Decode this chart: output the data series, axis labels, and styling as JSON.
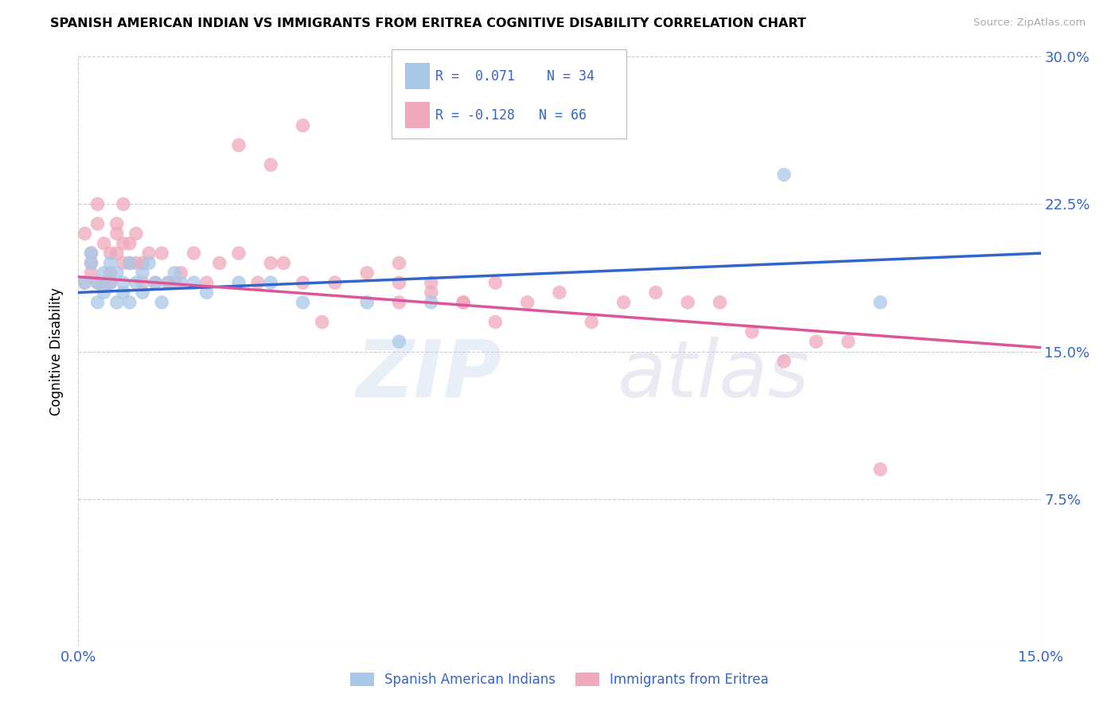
{
  "title": "SPANISH AMERICAN INDIAN VS IMMIGRANTS FROM ERITREA COGNITIVE DISABILITY CORRELATION CHART",
  "source": "Source: ZipAtlas.com",
  "ylabel": "Cognitive Disability",
  "x_min": 0.0,
  "x_max": 0.15,
  "y_min": 0.0,
  "y_max": 0.3,
  "y_ticks": [
    0.0,
    0.075,
    0.15,
    0.225,
    0.3
  ],
  "y_tick_labels": [
    "",
    "7.5%",
    "15.0%",
    "22.5%",
    "30.0%"
  ],
  "x_ticks_show": [
    0.0,
    0.15
  ],
  "x_tick_labels_show": [
    "0.0%",
    "15.0%"
  ],
  "legend_line1": "R =  0.071    N = 34",
  "legend_line2": "R = -0.128   N = 66",
  "legend_label_blue": "Spanish American Indians",
  "legend_label_pink": "Immigrants from Eritrea",
  "blue_color": "#a8c8e8",
  "pink_color": "#f0a8bc",
  "blue_line_color": "#3366cc",
  "pink_line_color": "#dd5599",
  "blue_x": [
    0.001,
    0.002,
    0.002,
    0.003,
    0.003,
    0.004,
    0.004,
    0.005,
    0.005,
    0.006,
    0.006,
    0.007,
    0.007,
    0.008,
    0.008,
    0.009,
    0.01,
    0.01,
    0.011,
    0.012,
    0.013,
    0.014,
    0.015,
    0.016,
    0.018,
    0.02,
    0.025,
    0.03,
    0.035,
    0.05,
    0.055,
    0.11,
    0.125,
    0.045
  ],
  "blue_y": [
    0.185,
    0.2,
    0.195,
    0.185,
    0.175,
    0.19,
    0.18,
    0.195,
    0.185,
    0.175,
    0.19,
    0.185,
    0.18,
    0.195,
    0.175,
    0.185,
    0.19,
    0.18,
    0.195,
    0.185,
    0.175,
    0.185,
    0.19,
    0.185,
    0.185,
    0.18,
    0.185,
    0.185,
    0.175,
    0.155,
    0.175,
    0.24,
    0.175,
    0.175
  ],
  "pink_x": [
    0.001,
    0.001,
    0.002,
    0.002,
    0.002,
    0.003,
    0.003,
    0.003,
    0.004,
    0.004,
    0.005,
    0.005,
    0.005,
    0.006,
    0.006,
    0.006,
    0.007,
    0.007,
    0.007,
    0.008,
    0.008,
    0.009,
    0.009,
    0.01,
    0.01,
    0.011,
    0.012,
    0.013,
    0.014,
    0.015,
    0.016,
    0.018,
    0.02,
    0.022,
    0.025,
    0.028,
    0.03,
    0.032,
    0.035,
    0.038,
    0.04,
    0.045,
    0.05,
    0.055,
    0.06,
    0.065,
    0.07,
    0.075,
    0.08,
    0.085,
    0.09,
    0.095,
    0.1,
    0.105,
    0.11,
    0.115,
    0.12,
    0.125,
    0.05,
    0.055,
    0.06,
    0.065,
    0.05,
    0.025,
    0.03,
    0.035
  ],
  "pink_y": [
    0.185,
    0.21,
    0.2,
    0.195,
    0.19,
    0.185,
    0.225,
    0.215,
    0.205,
    0.185,
    0.2,
    0.19,
    0.185,
    0.215,
    0.21,
    0.2,
    0.225,
    0.205,
    0.195,
    0.205,
    0.195,
    0.21,
    0.195,
    0.195,
    0.185,
    0.2,
    0.185,
    0.2,
    0.185,
    0.185,
    0.19,
    0.2,
    0.185,
    0.195,
    0.2,
    0.185,
    0.195,
    0.195,
    0.185,
    0.165,
    0.185,
    0.19,
    0.195,
    0.185,
    0.175,
    0.185,
    0.175,
    0.18,
    0.165,
    0.175,
    0.18,
    0.175,
    0.175,
    0.16,
    0.145,
    0.155,
    0.155,
    0.09,
    0.185,
    0.18,
    0.175,
    0.165,
    0.175,
    0.255,
    0.245,
    0.265
  ],
  "blue_line_x0": 0.0,
  "blue_line_x1": 0.15,
  "blue_line_y0": 0.18,
  "blue_line_y1": 0.2,
  "pink_line_x0": 0.0,
  "pink_line_x1": 0.15,
  "pink_line_y0": 0.188,
  "pink_line_y1": 0.152
}
